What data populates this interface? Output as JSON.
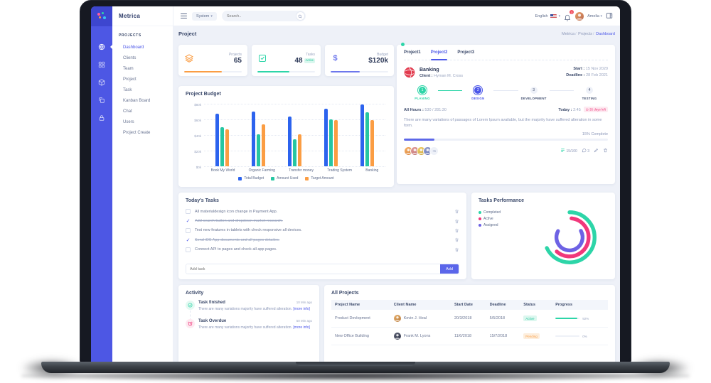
{
  "topbar": {
    "system_label": "System",
    "search_placeholder": "Search..",
    "language": "English",
    "notifications": "3",
    "user_name": "Amelia"
  },
  "sidebar": {
    "brand": "Metrica",
    "section": "PROJECTS",
    "items": [
      {
        "label": "Dashboard",
        "state": "active"
      },
      {
        "label": "Clients",
        "state": ""
      },
      {
        "label": "Team",
        "state": ""
      },
      {
        "label": "Project",
        "state": ""
      },
      {
        "label": "Task",
        "state": ""
      },
      {
        "label": "Kanban Board",
        "state": ""
      },
      {
        "label": "Chat",
        "state": ""
      },
      {
        "label": "Users",
        "state": ""
      },
      {
        "label": "Project Create",
        "state": ""
      }
    ]
  },
  "page": {
    "title": "Project",
    "breadcrumb": [
      "Metrica",
      "Projects",
      "Dashboard"
    ]
  },
  "stats": {
    "cards": [
      {
        "label": "Projects",
        "value": "65",
        "badge": "",
        "progress": 65,
        "color": "#fb9d43"
      },
      {
        "label": "Tasks",
        "value": "48",
        "badge": "Active",
        "progress": 55,
        "color": "#2dd5a8"
      },
      {
        "label": "Budget",
        "value": "$120k",
        "badge": "",
        "progress": 50,
        "color": "#6d77ec"
      }
    ]
  },
  "chart_data": [
    {
      "id": "project_budget",
      "type": "bar",
      "title": "Project Budget",
      "categories": [
        "Book My World",
        "Organic Farming",
        "Transfer money",
        "Trading System",
        "Banking"
      ],
      "series": [
        {
          "name": "Total Budget",
          "color": "#2c63ee",
          "values": [
            67,
            70,
            64,
            74,
            79
          ]
        },
        {
          "name": "Amount Used",
          "color": "#26c6a2",
          "values": [
            50,
            41,
            35,
            60,
            69
          ]
        },
        {
          "name": "Target Amount",
          "color": "#fb9d43",
          "values": [
            47,
            54,
            41,
            59,
            59
          ]
        }
      ],
      "ylim": [
        0,
        80
      ],
      "ytick_labels": [
        "$0k",
        "$20k",
        "$40k",
        "$60k",
        "$80k"
      ],
      "grid": "dotted-horizontal",
      "legend_position": "bottom"
    },
    {
      "id": "tasks_performance",
      "type": "radial",
      "title": "Tasks Performance",
      "series": [
        {
          "name": "Completed",
          "color": "#2dd5a8",
          "value": 68
        },
        {
          "name": "Active",
          "color": "#f1387b",
          "value": 60
        },
        {
          "name": "Assigned",
          "color": "#6d62e4",
          "value": 66
        }
      ],
      "legend_position": "left"
    }
  ],
  "project_panel": {
    "tabs": [
      {
        "label": "Project1",
        "state": ""
      },
      {
        "label": "Project2",
        "state": "active"
      },
      {
        "label": "Project3",
        "state": ""
      }
    ],
    "name": "Banking",
    "client_label": "Client :",
    "client_name": "Hyman M. Cross",
    "start_label": "Start :",
    "start_value": "15 Nov 2020",
    "deadline_label": "Deadline :",
    "deadline_value": "28 Feb 2021",
    "steps": [
      {
        "num": "1",
        "label": "PLANING",
        "state": "done"
      },
      {
        "num": "2",
        "label": "DESIGN",
        "state": "active"
      },
      {
        "num": "3",
        "label": "DEVELOPMENT",
        "state": ""
      },
      {
        "num": "4",
        "label": "TESTING",
        "state": ""
      }
    ],
    "hours_label": "All Hours :",
    "hours_value": "530 / 281:30",
    "today_label": "Today :",
    "today_value": "2:45",
    "days_left": "◷ 35 days left",
    "description": "There are many variations of passages of Lorem Ipsum available, but the majority have suffered alteration in some form.",
    "complete_text": "15% Complete",
    "complete_pct": 15,
    "extra_avatars": "+6",
    "tasks_ratio": "15/100",
    "comments_count": "3"
  },
  "today_tasks": {
    "title": "Today's Tasks",
    "items": [
      {
        "text": "All materialdesign icon change in Payment App.",
        "state": ""
      },
      {
        "text": "Add search button and dropdown market research.",
        "state": "done"
      },
      {
        "text": "Test new features in tablets with check responsive all devices.",
        "state": ""
      },
      {
        "text": "Send iOS App documents and all pages detailes.",
        "state": "done"
      },
      {
        "text": "Connect API to pages and check all app pages.",
        "state": ""
      }
    ],
    "add_placeholder": "Add task",
    "add_button": "Add"
  },
  "activity": {
    "title": "Activity",
    "items": [
      {
        "title": "Task finished",
        "time": "10 Min ago",
        "desc": "There are many variations majority have suffered alteration.",
        "more": "[more info]",
        "type": "done"
      },
      {
        "title": "Task Overdue",
        "time": "50 Min ago",
        "desc": "There are many variations majority have suffered alteration.",
        "more": "[more info]",
        "type": "overdue"
      }
    ]
  },
  "all_projects": {
    "title": "All Projects",
    "headers": [
      "Project Name",
      "Client Name",
      "Start Date",
      "Deadline",
      "Status",
      "Progress"
    ],
    "rows": [
      {
        "name": "Product Devlopment",
        "client": "Kevin J. Heal",
        "start": "20/3/2018",
        "deadline": "5/5/2018",
        "status": "Active",
        "status_state": "active",
        "progress": 92,
        "progress_text": "92%"
      },
      {
        "name": "New Office Building",
        "client": "Frank M. Lyons",
        "start": "11/6/2018",
        "deadline": "15/7/2018",
        "status": "Pending",
        "status_state": "pending",
        "progress": 0,
        "progress_text": "0%"
      }
    ]
  }
}
